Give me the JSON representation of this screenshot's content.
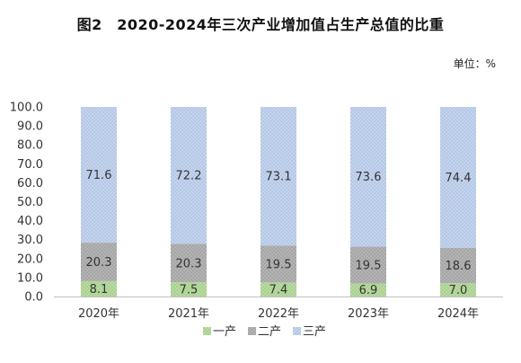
{
  "title": "图2　2020-2024年三次产业增加值占生产总值的比重",
  "unit": "单位：%",
  "chart_data": {
    "type": "bar",
    "stacked": true,
    "percent": true,
    "categories": [
      "2020年",
      "2021年",
      "2022年",
      "2023年",
      "2024年"
    ],
    "series": [
      {
        "name": "一产",
        "values": [
          8.1,
          7.5,
          7.4,
          6.9,
          7.0
        ],
        "color": "#a9d18e"
      },
      {
        "name": "二产",
        "values": [
          20.3,
          20.3,
          19.5,
          19.5,
          18.6
        ],
        "color": "#a5a5a5"
      },
      {
        "name": "三产",
        "values": [
          71.6,
          72.2,
          73.1,
          73.6,
          74.4
        ],
        "color": "#b4c7e7"
      }
    ],
    "ylim": [
      0,
      100
    ],
    "yticks": [
      "0.0",
      "10.0",
      "20.0",
      "30.0",
      "40.0",
      "50.0",
      "60.0",
      "70.0",
      "80.0",
      "90.0",
      "100.0"
    ],
    "legend": "bottom",
    "grid": false
  }
}
